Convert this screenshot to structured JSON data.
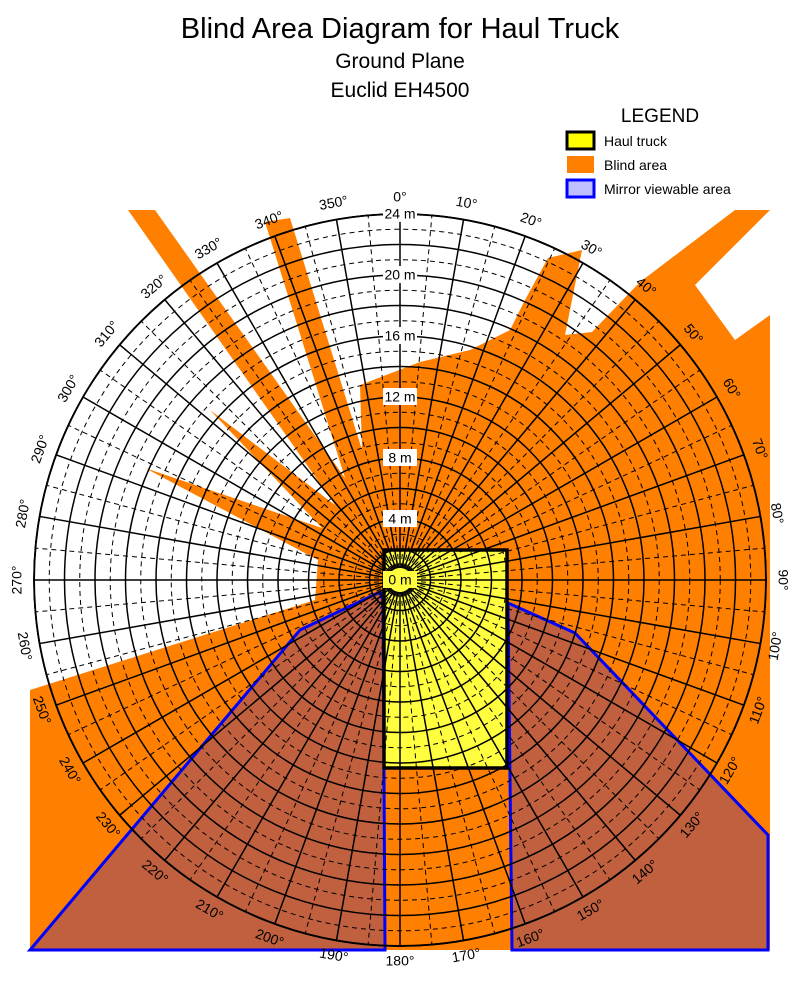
{
  "title": "Blind Area Diagram for Haul Truck",
  "subtitle": [
    "Ground Plane",
    "Euclid EH4500"
  ],
  "legend": {
    "title": "LEGEND",
    "items": [
      "Haul truck",
      "Blind area",
      "Mirror viewable area"
    ]
  },
  "angle_labels": [
    "0°",
    "10°",
    "20°",
    "30°",
    "40°",
    "50°",
    "60°",
    "70°",
    "80°",
    "90°",
    "100°",
    "110°",
    "120°",
    "130°",
    "140°",
    "150°",
    "160°",
    "170°",
    "180°",
    "190°",
    "200°",
    "210°",
    "220°",
    "230°",
    "240°",
    "250°",
    "260°",
    "270°",
    "280°",
    "290°",
    "300°",
    "310°",
    "320°",
    "330°",
    "340°",
    "350°"
  ],
  "range_labels": [
    "0 m",
    "4 m",
    "8 m",
    "12 m",
    "16 m",
    "20 m",
    "24 m"
  ]
}
